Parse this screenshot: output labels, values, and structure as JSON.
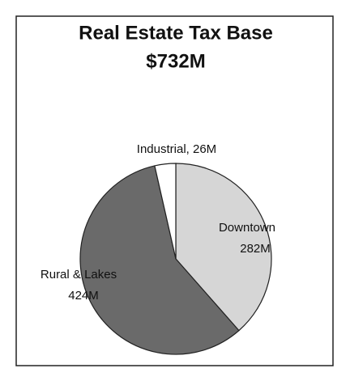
{
  "chart_data": {
    "type": "pie",
    "title": "Real Estate Tax Base",
    "subtitle": "$732M",
    "values": [
      282,
      424,
      26
    ],
    "value_labels": [
      "Downtown 282M",
      "Rural & Lakes 424M",
      "Industrial, 26M"
    ],
    "colors": [
      "#d6d6d6",
      "#6a6a6a",
      "#ffffff"
    ]
  }
}
